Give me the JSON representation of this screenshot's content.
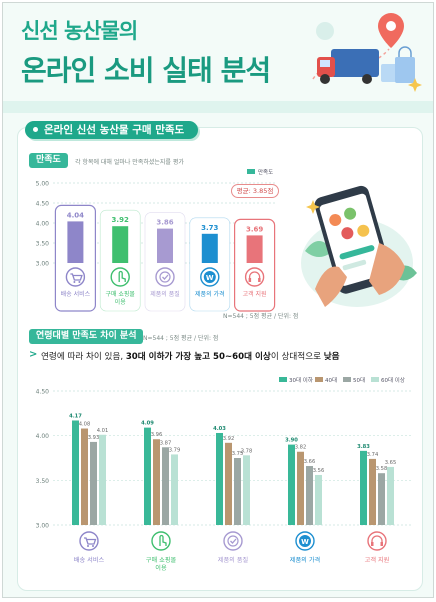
{
  "header": {
    "title_line1": "신선 농산물의",
    "title_line2": "온라인 소비 실태 분석"
  },
  "section": {
    "title": "온라인 신선 농산물 구매 만족도"
  },
  "satisfaction": {
    "label": "만족도",
    "question": "각 항목에 대해 얼마나 만족하셨는지를 평가",
    "average_label": "평균: 3.85점",
    "footnote": "N=544 ; 5점 평균 / 단위: 점"
  },
  "age": {
    "label": "연령대별 만족도 차이 분석",
    "note": "N=544 ; 5점 평균 / 단위: 점",
    "finding_plain1": "연령에 따라 차이 있음, ",
    "finding_bold": "30대 이하가 가장 높고 50~60대 이상",
    "finding_plain2": "이 상대적으로 ",
    "finding_bold2": "낮음"
  },
  "icons": [
    "cart-icon",
    "hand-tap-icon",
    "check-circle-icon",
    "won-coin-icon",
    "headset-icon"
  ],
  "chart_data": [
    {
      "type": "bar",
      "title": "만족도",
      "categories": [
        "배송 서비스",
        "구매 쇼핑몰 이용",
        "제품의 품질",
        "제품의 가격",
        "고객 지원"
      ],
      "series": [
        {
          "name": "만족도",
          "values": [
            4.04,
            3.92,
            3.86,
            3.73,
            3.69
          ]
        }
      ],
      "ylim": [
        3.0,
        5.0
      ],
      "yticks": [
        "3.00",
        "3.50",
        "4.00",
        "4.50",
        "5.00"
      ],
      "bar_colors": [
        "#8e86c9",
        "#3fbf6f",
        "#a79ad1",
        "#1d8fd0",
        "#e8747a"
      ],
      "legend_color": "#36b79a",
      "legend": "top-right"
    },
    {
      "type": "bar",
      "title": "연령대별 만족도 차이 분석",
      "categories": [
        "배송 서비스",
        "구매 쇼핑몰 이용",
        "제품의 품질",
        "제품의 가격",
        "고객 지원"
      ],
      "series": [
        {
          "name": "30대 이하",
          "values": [
            4.17,
            4.09,
            4.03,
            3.9,
            3.83
          ],
          "color": "#39b898"
        },
        {
          "name": "40대",
          "values": [
            4.08,
            3.96,
            3.92,
            3.82,
            3.74
          ],
          "color": "#b99670"
        },
        {
          "name": "50대",
          "values": [
            3.93,
            3.87,
            3.75,
            3.66,
            3.58
          ],
          "color": "#9ba7a4"
        },
        {
          "name": "60대 이상",
          "values": [
            4.01,
            3.79,
            3.78,
            3.56,
            3.65
          ],
          "color": "#b9e1d4"
        }
      ],
      "ylim": [
        3.0,
        4.5
      ],
      "yticks": [
        "3.00",
        "3.50",
        "4.00",
        "4.50"
      ],
      "legend": "top-right"
    }
  ]
}
